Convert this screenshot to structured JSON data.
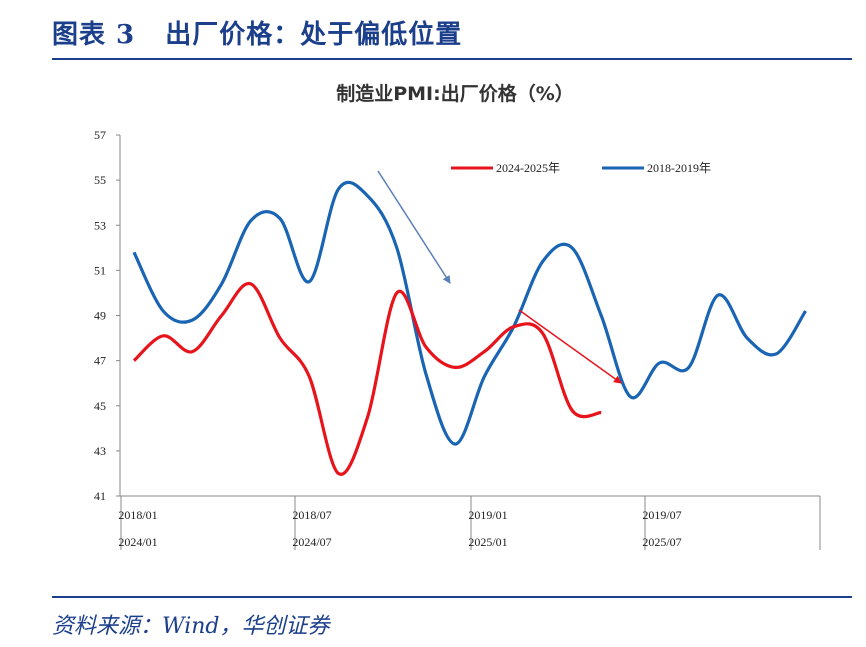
{
  "figure_title": "图表 3   出厂价格：处于偏低位置",
  "source": "资料来源：Wind，华创证券",
  "chart_data": {
    "type": "line",
    "title": "制造业PMI:出厂价格（%）",
    "xlabel": "",
    "ylabel": "",
    "ylim": [
      41,
      57
    ],
    "yticks": [
      "41",
      "43",
      "45",
      "47",
      "49",
      "51",
      "53",
      "55",
      "57"
    ],
    "xticks_row1": [
      "2018/01",
      "2018/07",
      "2019/01",
      "2019/07"
    ],
    "xticks_row2": [
      "2024/01",
      "2024/07",
      "2025/01",
      "2025/07"
    ],
    "grid": false,
    "legend_position": "top-right",
    "series": [
      {
        "name": "2024-2025年",
        "color": "#e8141c",
        "values": [
          47.0,
          48.1,
          47.4,
          49.0,
          50.4,
          48.0,
          46.3,
          42.0,
          44.5,
          50.0,
          47.6,
          46.7,
          47.4,
          48.5,
          48.2,
          44.8,
          44.7
        ]
      },
      {
        "name": "2018-2019年",
        "color": "#1a64b4",
        "values": [
          51.8,
          49.2,
          48.8,
          50.4,
          53.2,
          53.3,
          50.5,
          54.6,
          54.3,
          52.0,
          46.4,
          43.3,
          46.3,
          48.5,
          51.4,
          52.0,
          49.0,
          45.4,
          46.9,
          46.7,
          49.9,
          48.0,
          47.3,
          49.2
        ]
      }
    ],
    "annotations": [
      {
        "type": "arrow",
        "color": "#5b7fb8"
      },
      {
        "type": "arrow",
        "color": "#e8141c"
      }
    ]
  }
}
